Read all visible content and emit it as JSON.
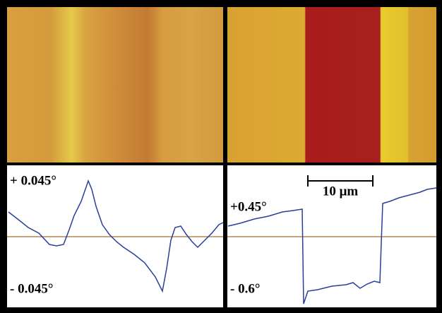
{
  "panels": {
    "left": {
      "upper_label": "+ 0.045°",
      "lower_label": "- 0.045°"
    },
    "right": {
      "upper_label": "+0.45°",
      "lower_label": "- 0.6°",
      "scale_bar": "10 μm"
    }
  }
}
